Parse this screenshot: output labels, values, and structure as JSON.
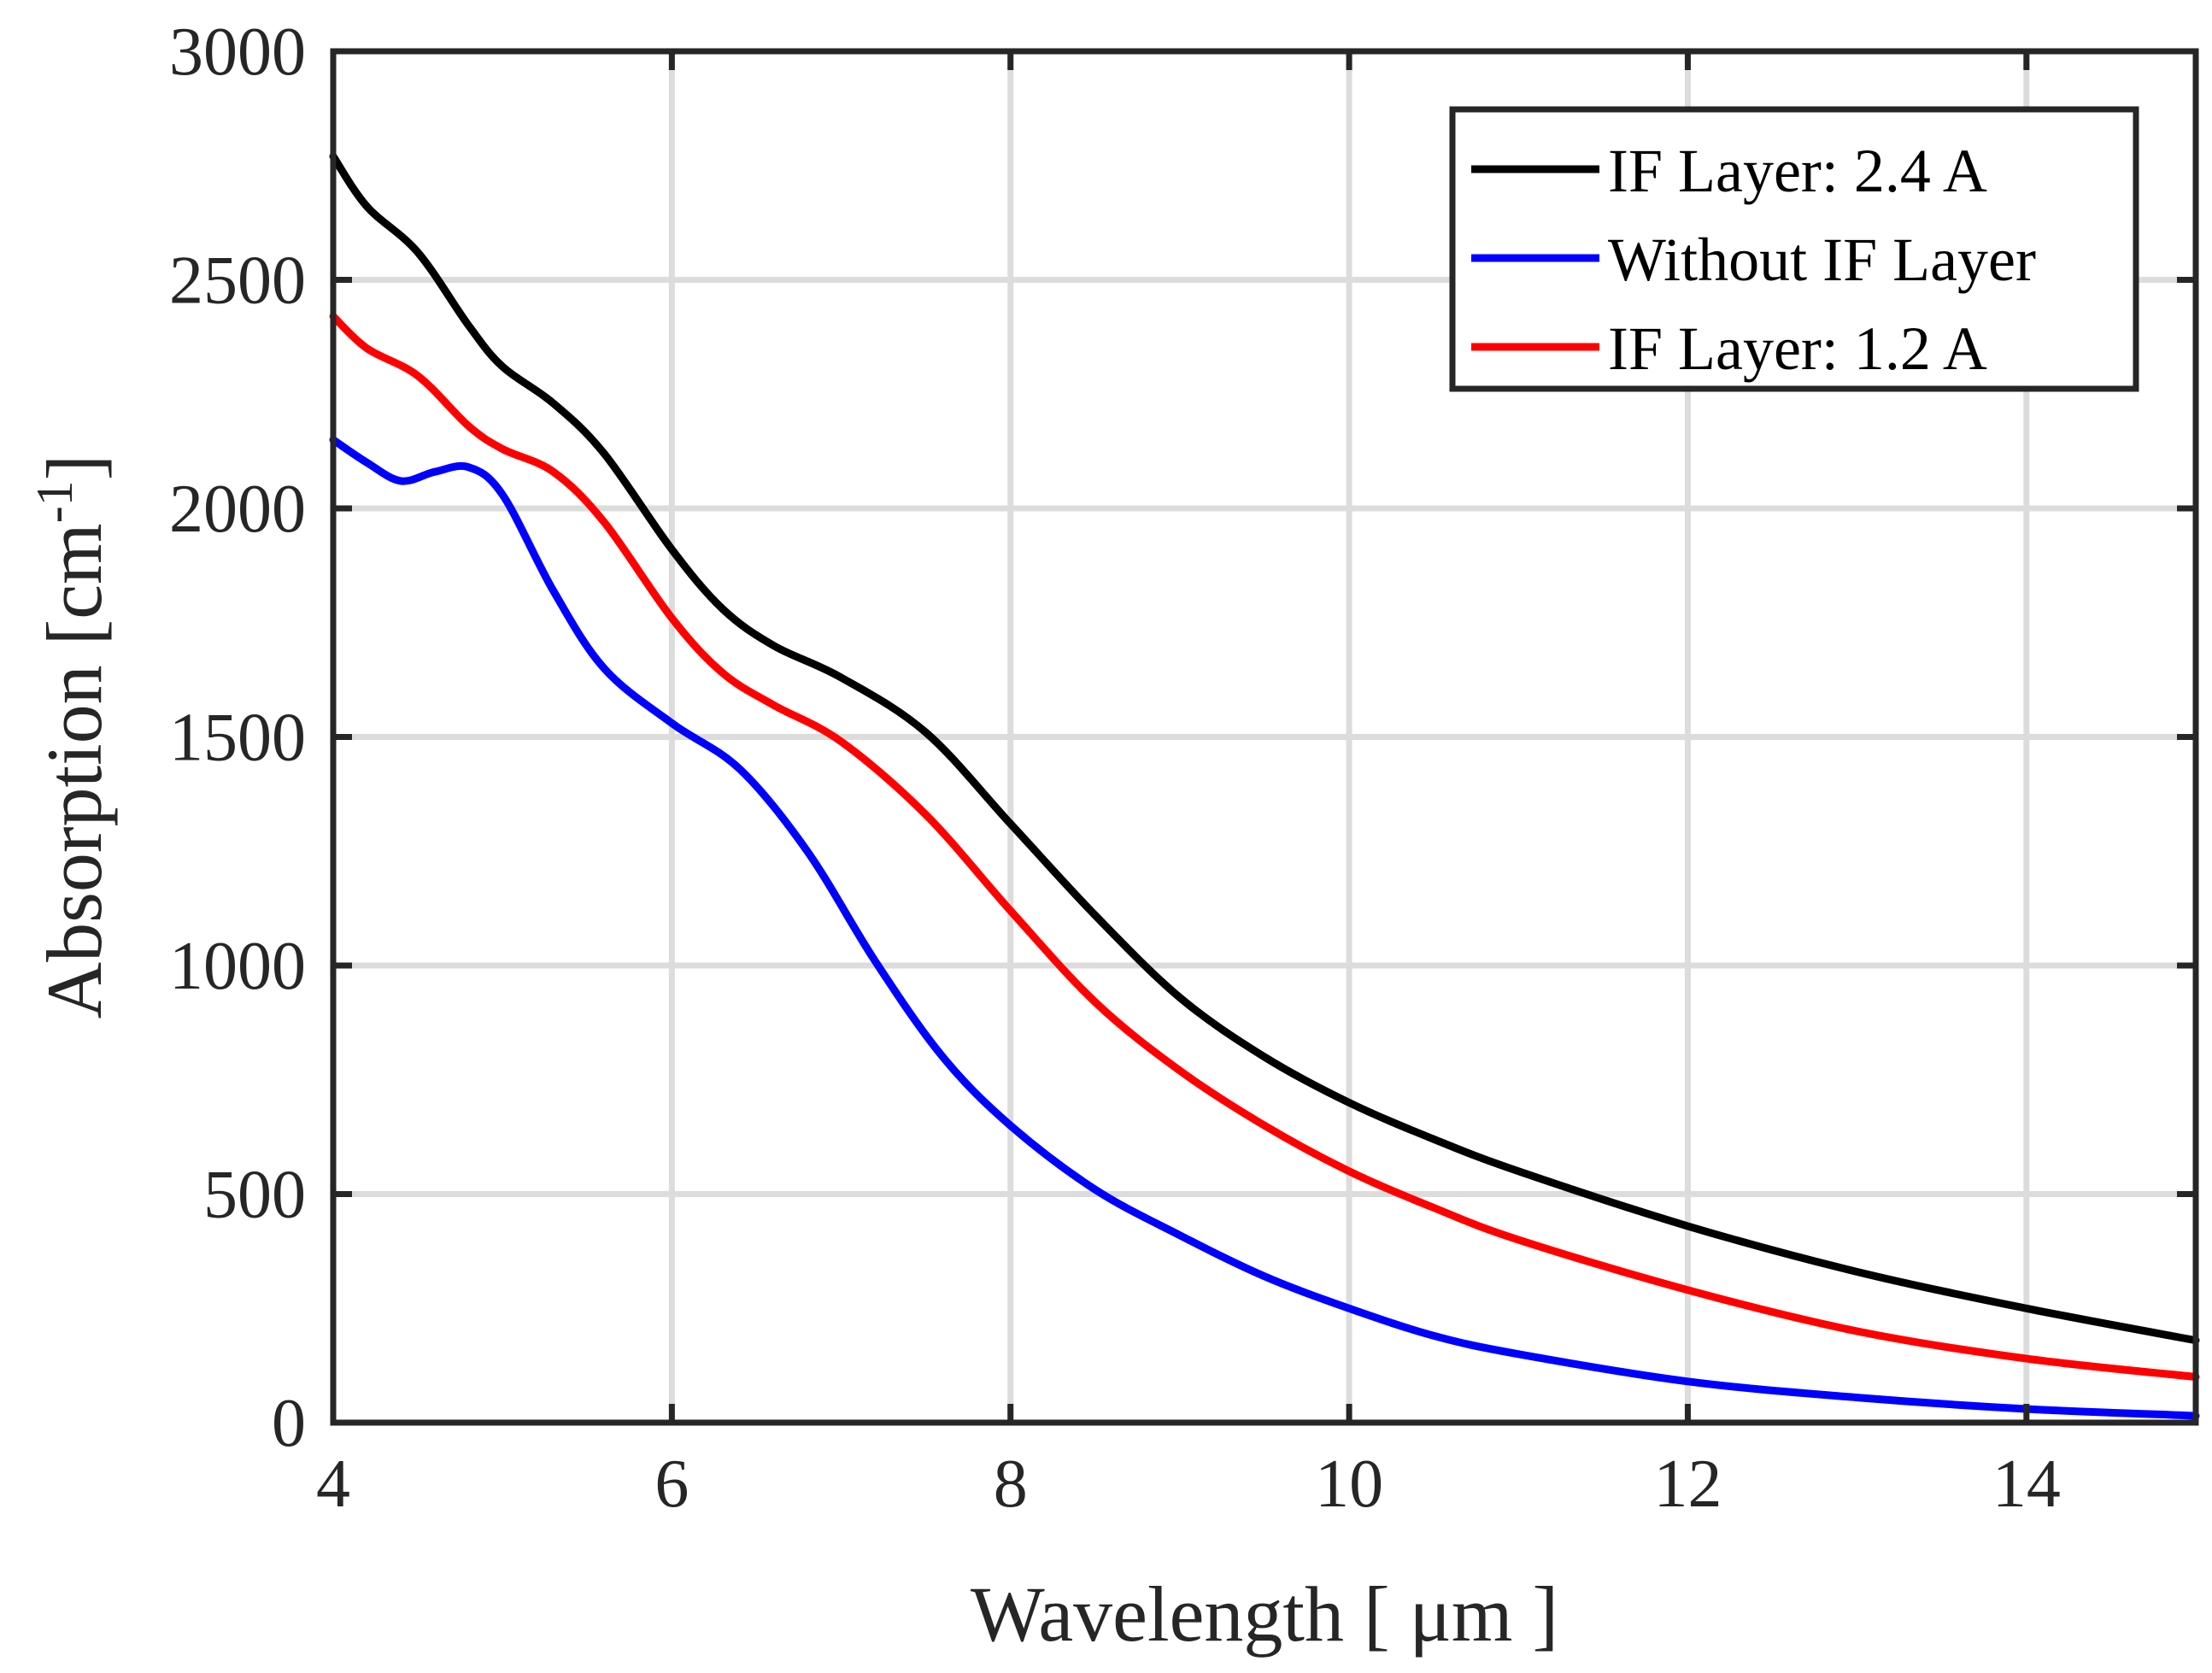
{
  "chart_data": {
    "type": "line",
    "title": "",
    "xlabel": "Wavelength [ μm ]",
    "ylabel": "Absorption [cm",
    "ylabel_superscript": "-1",
    "ylabel_close": "]",
    "xlim": [
      4,
      15
    ],
    "ylim": [
      0,
      3000
    ],
    "xticks": [
      4,
      6,
      8,
      10,
      12,
      14
    ],
    "yticks": [
      0,
      500,
      1000,
      1500,
      2000,
      2500,
      3000
    ],
    "grid": true,
    "legend_position": "top-right",
    "series": [
      {
        "name": "IF Layer: 2.4 A",
        "color": "#000000",
        "x": [
          4.0,
          4.2,
          4.5,
          4.8,
          5.0,
          5.3,
          5.6,
          6.0,
          6.3,
          6.6,
          7.0,
          7.5,
          8.0,
          8.5,
          9.0,
          9.5,
          10.0,
          10.5,
          11.0,
          12.0,
          13.0,
          14.0,
          15.0
        ],
        "y": [
          2770,
          2660,
          2560,
          2400,
          2310,
          2230,
          2120,
          1910,
          1780,
          1700,
          1630,
          1510,
          1310,
          1110,
          930,
          800,
          700,
          620,
          550,
          430,
          330,
          250,
          180
        ]
      },
      {
        "name": "Without IF Layer",
        "color": "#0000ff",
        "x": [
          4.0,
          4.2,
          4.4,
          4.6,
          4.8,
          5.0,
          5.3,
          5.6,
          6.0,
          6.4,
          6.8,
          7.2,
          7.6,
          8.0,
          8.5,
          9.0,
          9.5,
          10.0,
          10.5,
          11.0,
          12.0,
          13.0,
          14.0,
          15.0
        ],
        "y": [
          2150,
          2100,
          2060,
          2080,
          2090,
          2030,
          1820,
          1650,
          1530,
          1430,
          1250,
          1010,
          800,
          650,
          510,
          410,
          320,
          250,
          190,
          150,
          90,
          55,
          30,
          15
        ]
      },
      {
        "name": "IF Layer: 1.2 A",
        "color": "#ff0000",
        "x": [
          4.0,
          4.2,
          4.5,
          4.8,
          5.0,
          5.3,
          5.6,
          6.0,
          6.3,
          6.6,
          7.0,
          7.5,
          8.0,
          8.5,
          9.0,
          9.5,
          10.0,
          10.5,
          11.0,
          12.0,
          13.0,
          14.0,
          15.0
        ],
        "y": [
          2420,
          2350,
          2290,
          2180,
          2130,
          2080,
          1970,
          1760,
          1640,
          1570,
          1490,
          1330,
          1120,
          920,
          770,
          650,
          550,
          470,
          400,
          290,
          200,
          140,
          100
        ]
      }
    ]
  }
}
